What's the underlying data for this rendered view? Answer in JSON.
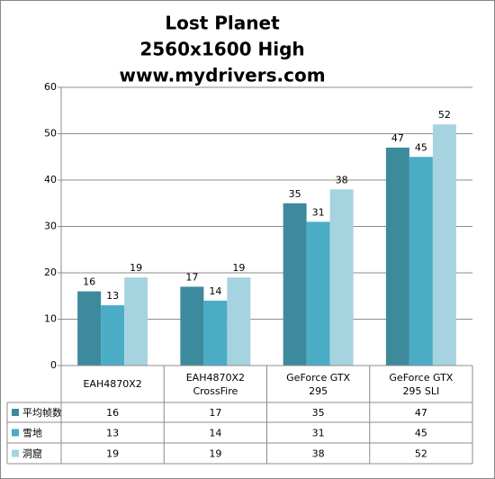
{
  "chart_data": {
    "type": "bar",
    "title": [
      "Lost Planet",
      "2560x1600 High",
      "www.mydrivers.com"
    ],
    "categories": [
      "EAH4870X2",
      "EAH4870X2\nCrossFire",
      "GeForce GTX\n295",
      "GeForce GTX\n295 SLI"
    ],
    "series": [
      {
        "name": "平均帧数",
        "color": "#3d8a9d",
        "values": [
          16,
          17,
          35,
          47
        ]
      },
      {
        "name": "雪地",
        "color": "#4bacc6",
        "values": [
          13,
          14,
          31,
          45
        ]
      },
      {
        "name": "洞窟",
        "color": "#a6d3e0",
        "values": [
          19,
          19,
          38,
          52
        ]
      }
    ],
    "ylim": [
      0,
      60
    ],
    "yticks": [
      0,
      10,
      20,
      30,
      40,
      50,
      60
    ],
    "grid": true,
    "data_table": true
  }
}
